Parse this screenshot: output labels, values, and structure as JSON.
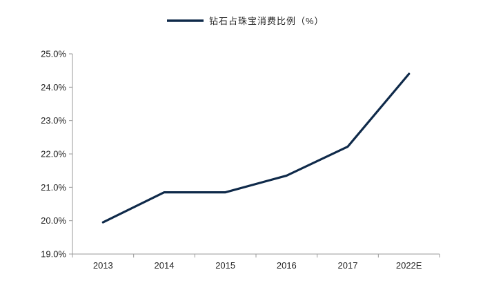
{
  "chart_data": {
    "type": "line",
    "categories": [
      "2013",
      "2014",
      "2015",
      "2016",
      "2017",
      "2022E"
    ],
    "series": [
      {
        "name": "钻石占珠宝消费比例（%）",
        "values": [
          19.95,
          20.85,
          20.85,
          21.35,
          22.22,
          24.4
        ],
        "color": "#0f2a4a"
      }
    ],
    "ylim": [
      19.0,
      25.0
    ],
    "yticks": [
      "19.0%",
      "20.0%",
      "21.0%",
      "22.0%",
      "23.0%",
      "24.0%",
      "25.0%"
    ],
    "ytick_values": [
      19,
      20,
      21,
      22,
      23,
      24,
      25
    ],
    "grid": false,
    "legend_position": "top-center",
    "axis_color": "#999999"
  }
}
